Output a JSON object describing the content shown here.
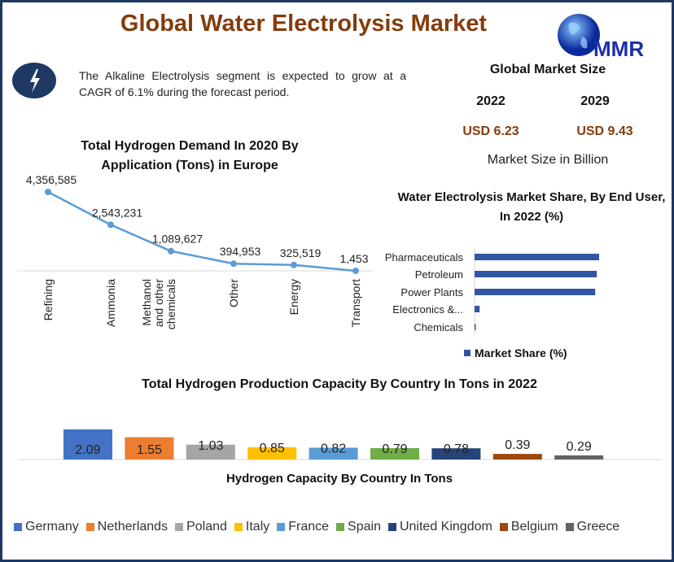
{
  "title": "Global Water Electrolysis Market",
  "logo_text": "MMR",
  "icons": {
    "highlight": "lightning-bolt-icon",
    "logo": "globe-logo-icon"
  },
  "note": "The Alkaline Electrolysis segment is expected to grow at a CAGR of 6.1% during the forecast period.",
  "market_size": {
    "heading": "Global Market Size",
    "year1": "2022",
    "year2": "2029",
    "value1": "USD 6.23",
    "value2": "USD 9.43",
    "unit": "Market Size in Billion"
  },
  "colors": {
    "title": "#843c0c",
    "frame": "#1f3864",
    "line": "#5b9bd5",
    "bar": "#2f55a4"
  },
  "chart_data": [
    {
      "type": "line",
      "title": "Total Hydrogen Demand In 2020 By Application (Tons) in Europe",
      "categories": [
        "Refining",
        "Ammonia",
        "Methanol and other chemicals",
        "Other",
        "Energy",
        "Transport"
      ],
      "values": [
        4356585,
        2543231,
        1089627,
        394953,
        325519,
        1453
      ],
      "labels": [
        "4,356,585",
        "2,543,231",
        "1,089,627",
        "394,953",
        "325,519",
        "1,453"
      ]
    },
    {
      "type": "bar",
      "orientation": "horizontal",
      "title": "Water Electrolysis Market Share, By End User, In 2022 (%)",
      "categories": [
        "Pharmaceuticals",
        "Petroleum",
        "Power Plants",
        "Electronics &...",
        "Chemicals"
      ],
      "values": [
        32,
        31.4,
        31,
        1.3,
        0.3
      ],
      "legend": "Market Share (%)",
      "legend_position": "bottom"
    },
    {
      "type": "bar",
      "title": "Total Hydrogen Production Capacity By Country In Tons in 2022",
      "xlabel": "Hydrogen Capacity By Country In Tons",
      "categories": [
        "Germany",
        "Netherlands",
        "Poland",
        "Italy",
        "France",
        "Spain",
        "United Kingdom",
        "Belgium",
        "Greece"
      ],
      "values": [
        2.09,
        1.55,
        1.03,
        0.85,
        0.82,
        0.79,
        0.78,
        0.39,
        0.29
      ],
      "labels": [
        "2.09",
        "1.55",
        "1.03",
        "0.85",
        "0.82",
        "0.79",
        "0.78",
        "0.39",
        "0.29"
      ],
      "colors": [
        "#4472c4",
        "#ed7d31",
        "#a5a5a5",
        "#ffc000",
        "#5b9bd5",
        "#70ad47",
        "#264478",
        "#9e480e",
        "#636363"
      ],
      "legend_position": "bottom"
    }
  ]
}
